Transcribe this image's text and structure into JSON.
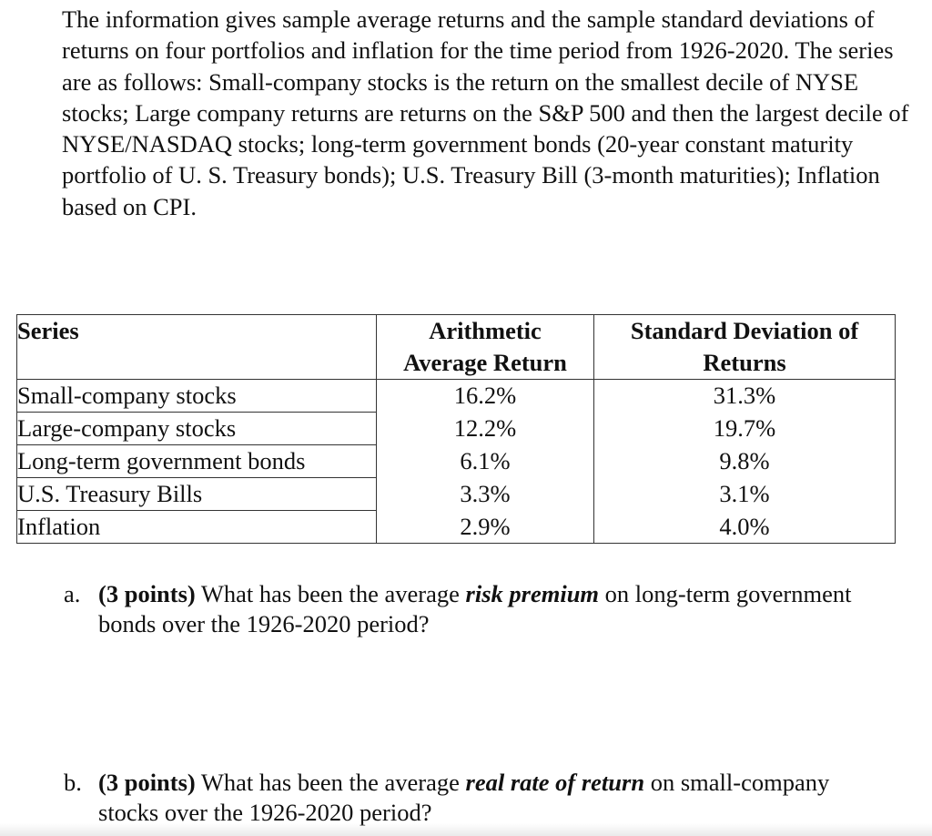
{
  "intro_text": "The information gives sample average returns and the sample standard deviations of returns on four portfolios and inflation for the time period from 1926-2020.  The series are as follows: Small-company stocks is the return on the smallest decile of NYSE stocks; Large company returns are returns on the S&P 500 and then the largest decile of NYSE/NASDAQ stocks; long-term government bonds (20-year constant maturity portfolio of U. S. Treasury bonds); U.S. Treasury Bill (3-month maturities); Inflation based on CPI.",
  "table": {
    "headers": {
      "series": "Series",
      "avg_line1": "Arithmetic",
      "avg_line2": "Average Return",
      "sd_line1": "Standard Deviation of",
      "sd_line2": "Returns"
    },
    "rows": [
      {
        "series": "Small-company stocks",
        "avg": "16.2%",
        "sd": "31.3%"
      },
      {
        "series": "Large-company stocks",
        "avg": "12.2%",
        "sd": "19.7%"
      },
      {
        "series": "Long-term government bonds",
        "avg": "6.1%",
        "sd": "9.8%"
      },
      {
        "series": "U.S. Treasury Bills",
        "avg": "3.3%",
        "sd": "3.1%"
      },
      {
        "series": "Inflation",
        "avg": "2.9%",
        "sd": "4.0%"
      }
    ]
  },
  "questions": {
    "a": {
      "letter": "a.",
      "points": "(3 points)",
      "before": " What has been the average ",
      "term": "risk premium",
      "after": " on long-term government bonds over the 1926-2020 period?"
    },
    "b": {
      "letter": "b.",
      "points": "(3 points)",
      "before": " What has been the average ",
      "term": "real rate of return",
      "after": " on small-company stocks over the 1926-2020 period?"
    }
  }
}
